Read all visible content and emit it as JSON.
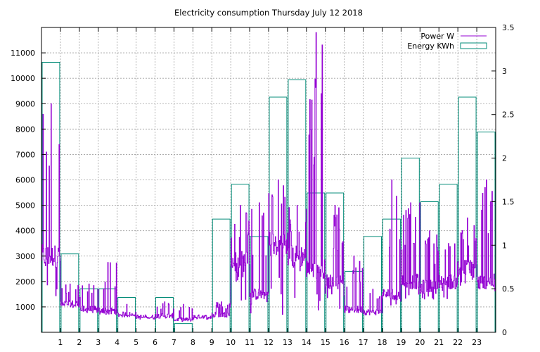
{
  "chart_data": {
    "type": "bar+line",
    "title": "Electricity consumption Thursday July 12 2018",
    "xlabel": "",
    "ylabel": "",
    "y2label": "",
    "xlim": [
      0,
      24
    ],
    "ylim": [
      0,
      12000
    ],
    "y2lim": [
      0,
      3.5
    ],
    "x_ticks": [
      1,
      2,
      3,
      4,
      5,
      6,
      7,
      8,
      9,
      10,
      11,
      12,
      13,
      14,
      15,
      16,
      17,
      18,
      19,
      20,
      21,
      22,
      23
    ],
    "y_ticks": [
      1000,
      2000,
      3000,
      4000,
      5000,
      6000,
      7000,
      8000,
      9000,
      10000,
      11000
    ],
    "y2_ticks": [
      0,
      0.5,
      1,
      1.5,
      2,
      2.5,
      3,
      3.5
    ],
    "grid": true,
    "legend_position": "top-right",
    "series": [
      {
        "name": "Power W",
        "axis": "left",
        "color": "#9400d3",
        "style": "step-line",
        "hourly_base": [
          3000,
          1100,
          900,
          850,
          700,
          600,
          650,
          500,
          600,
          700,
          2800,
          1500,
          3500,
          3000,
          2500,
          2000,
          900,
          800,
          1500,
          2000,
          1800,
          2000,
          2500,
          2000
        ],
        "hourly_peak": [
          9000,
          1900,
          1900,
          2750,
          1100,
          600,
          1200,
          1100,
          650,
          1200,
          5000,
          5100,
          6000,
          5000,
          11800,
          5000,
          3000,
          1700,
          6000,
          5100,
          4000,
          3500,
          4500,
          6000
        ],
        "hourly_low": [
          1200,
          1000,
          800,
          700,
          650,
          550,
          550,
          450,
          550,
          550,
          1000,
          700,
          700,
          900,
          800,
          900,
          750,
          750,
          1000,
          1300,
          1300,
          1300,
          1700,
          1500
        ]
      },
      {
        "name": "Energy KWh",
        "axis": "right",
        "color": "#008b77",
        "style": "boxes",
        "x": [
          0,
          1,
          2,
          3,
          4,
          5,
          6,
          7,
          8,
          9,
          10,
          11,
          12,
          13,
          14,
          15,
          16,
          17,
          18,
          19,
          20,
          21,
          22,
          23
        ],
        "values": [
          3.1,
          0.9,
          0.5,
          0.5,
          0.4,
          0.0,
          0.4,
          0.1,
          0.0,
          1.3,
          1.7,
          1.1,
          2.7,
          2.9,
          1.6,
          1.6,
          0.7,
          1.1,
          1.3,
          2.0,
          1.5,
          1.7,
          2.7,
          2.3
        ]
      }
    ]
  }
}
